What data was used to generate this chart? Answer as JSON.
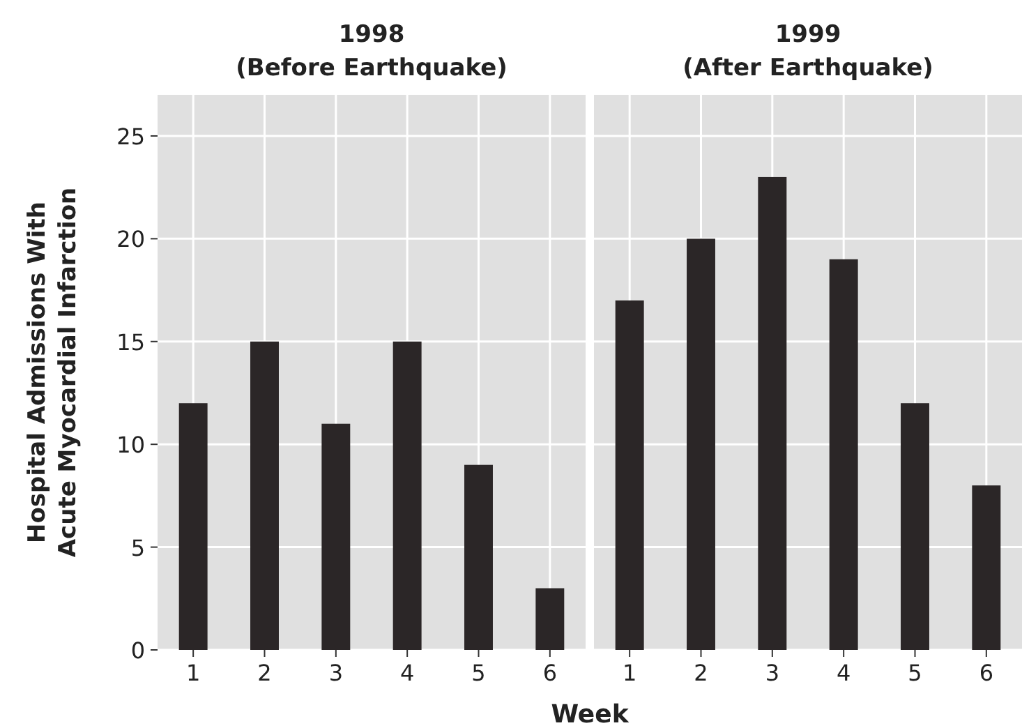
{
  "chart_data": [
    {
      "type": "bar",
      "title": "1998",
      "subtitle": "(Before Earthquake)",
      "xlabel": "Week",
      "ylabel": "Hospital Admissions With Acute Myocardial Infarction",
      "categories": [
        "1",
        "2",
        "3",
        "4",
        "5",
        "6"
      ],
      "values": [
        12,
        15,
        11,
        15,
        9,
        3
      ],
      "color": "#2b2627",
      "ylim": [
        0,
        27
      ],
      "yticks": [
        0,
        5,
        10,
        15,
        20,
        25
      ],
      "grid": true
    },
    {
      "type": "bar",
      "title": "1999",
      "subtitle": "(After Earthquake)",
      "categories": [
        "1",
        "2",
        "3",
        "4",
        "5",
        "6"
      ],
      "values": [
        17,
        20,
        23,
        19,
        12,
        8
      ],
      "color": "#2b2627",
      "ylim": [
        0,
        27
      ],
      "yticks": [
        0,
        5,
        10,
        15,
        20,
        25
      ],
      "grid": true,
      "tick_labels": "x"
    }
  ]
}
